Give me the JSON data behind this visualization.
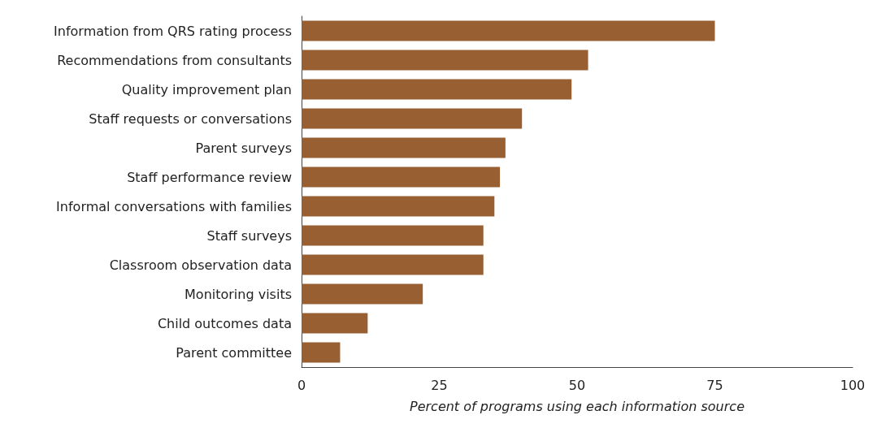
{
  "chart_data": {
    "type": "bar",
    "orientation": "horizontal",
    "xlabel": "Percent of programs using each information source",
    "categories": [
      "Information from QRS rating process",
      "Recommendations from consultants",
      "Quality improvement plan",
      "Staff requests or conversations",
      "Parent surveys",
      "Staff performance review",
      "Informal conversations with families",
      "Staff surveys",
      "Classroom observation data",
      "Monitoring visits",
      "Child outcomes data",
      "Parent committee"
    ],
    "values": [
      75,
      52,
      49,
      40,
      37,
      36,
      35,
      33,
      33,
      22,
      12,
      7
    ],
    "color": "#985f33",
    "xlim": [
      0,
      100
    ],
    "xticks": [
      0,
      25,
      50,
      75,
      100
    ]
  }
}
